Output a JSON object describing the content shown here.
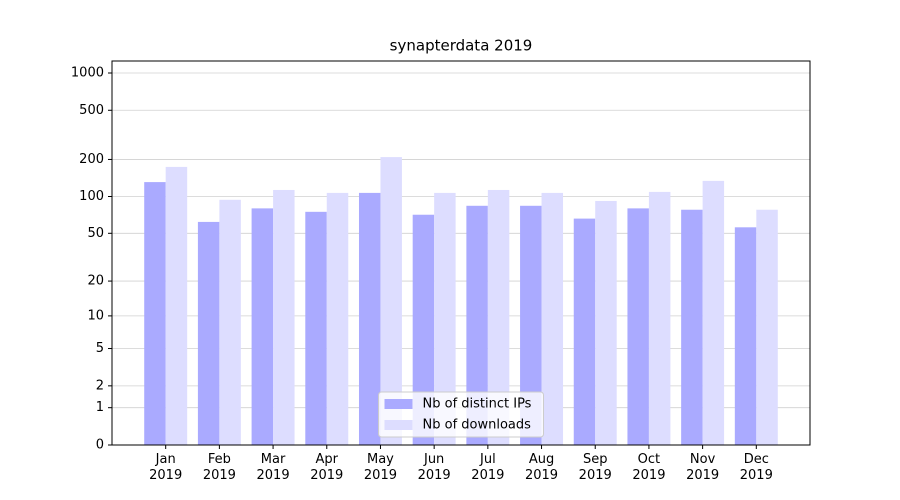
{
  "chart_data": {
    "type": "bar",
    "title": "synapterdata 2019",
    "categories": [
      "Jan\n2019",
      "Feb\n2019",
      "Mar\n2019",
      "Apr\n2019",
      "May\n2019",
      "Jun\n2019",
      "Jul\n2019",
      "Aug\n2019",
      "Sep\n2019",
      "Oct\n2019",
      "Nov\n2019",
      "Dec\n2019"
    ],
    "series": [
      {
        "name": "Nb of distinct IPs",
        "color": "#aaaaff",
        "values": [
          131,
          62,
          80,
          75,
          107,
          71,
          84,
          84,
          66,
          80,
          78,
          56
        ]
      },
      {
        "name": "Nb of downloads",
        "color": "#ddddff",
        "values": [
          174,
          94,
          113,
          107,
          209,
          107,
          113,
          107,
          92,
          109,
          134,
          78
        ]
      }
    ],
    "yscale": "log1p",
    "ylim": [
      0,
      1250
    ],
    "yticks": [
      0,
      1,
      2,
      5,
      10,
      20,
      50,
      100,
      200,
      500,
      1000
    ],
    "grid": true,
    "legend": "lower center"
  }
}
